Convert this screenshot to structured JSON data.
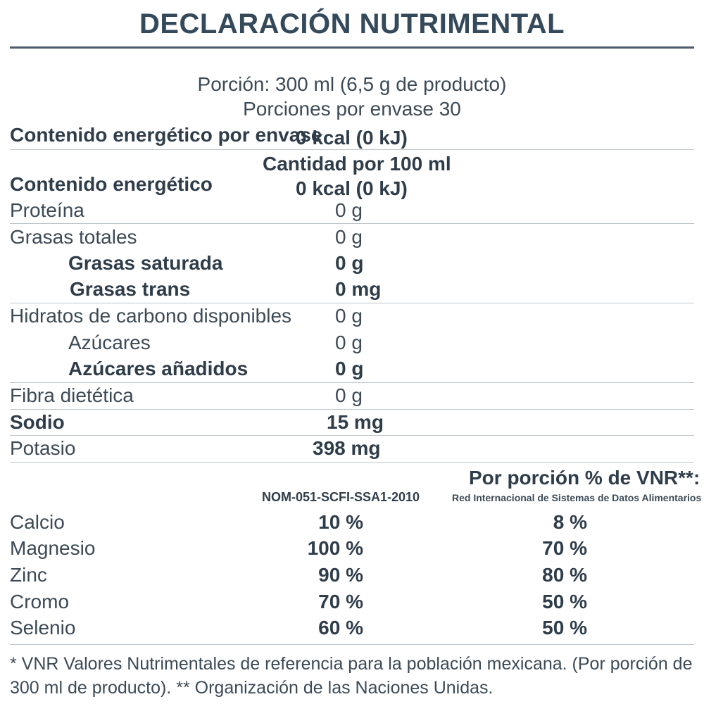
{
  "title": "DECLARACIÓN NUTRIMENTAL",
  "serving": {
    "portion": "Porción: 300 ml (6,5 g de producto)",
    "per_container": "Porciones por envase 30"
  },
  "energy_container": {
    "label": "Contenido energético por envase",
    "value": "0 kcal (0 kJ)"
  },
  "per100_header": "Cantidad por 100 ml",
  "energy_100": {
    "label": "Contenido energético",
    "value": "0 kcal (0 kJ)"
  },
  "nutrients": [
    {
      "label": "Proteína",
      "value": "0 g"
    },
    {
      "label": "Grasas totales",
      "value": "0 g"
    },
    {
      "label": "Grasas saturada",
      "value": "0 g"
    },
    {
      "label": "Grasas trans",
      "value": "0 mg"
    },
    {
      "label": "Hidratos de carbono disponibles",
      "value": "0 g"
    },
    {
      "label": "Azúcares",
      "value": "0 g"
    },
    {
      "label": "Azúcares añadidos",
      "value": "0 g"
    },
    {
      "label": "Fibra dietética",
      "value": "0 g"
    },
    {
      "label": "Sodio",
      "value": "15 mg"
    },
    {
      "label": "Potasio",
      "value": "398 mg"
    }
  ],
  "vnr": {
    "header": "Por porción % de VNR**:",
    "col1": "NOM-051-SCFI-SSA1-2010",
    "col2": "Red Internacional de Sistemas de Datos Alimentarios",
    "rows": [
      {
        "label": "Calcio",
        "v1": "10 %",
        "v2": "8 %"
      },
      {
        "label": "Magnesio",
        "v1": "100 %",
        "v2": "70 %"
      },
      {
        "label": "Zinc",
        "v1": "90 %",
        "v2": "80 %"
      },
      {
        "label": "Cromo",
        "v1": "70 %",
        "v2": "50 %"
      },
      {
        "label": "Selenio",
        "v1": "60 %",
        "v2": "50 %"
      }
    ]
  },
  "footnote": "* VNR Valores Nutrimentales de referencia para la población mexicana. (Por porción de 300 ml de producto). ** Organización de las Naciones Unidas."
}
